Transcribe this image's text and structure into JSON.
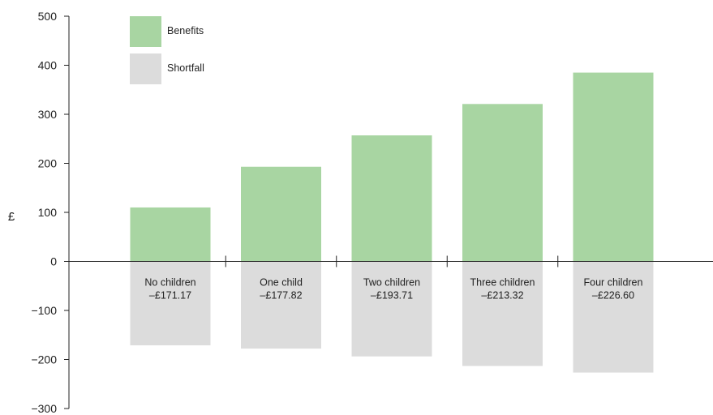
{
  "chart_data": {
    "type": "bar",
    "ylabel": "£",
    "ylim": [
      -300,
      500
    ],
    "yticks": [
      500,
      400,
      300,
      200,
      100,
      0,
      -100,
      -200,
      -300
    ],
    "categories": [
      "No children",
      "One child",
      "Two children",
      "Three children",
      "Four children"
    ],
    "series": [
      {
        "name": "Benefits",
        "values": [
          110,
          193,
          257,
          321,
          385
        ],
        "color": "#a8d5a2"
      },
      {
        "name": "Shortfall",
        "values": [
          -171.17,
          -177.82,
          -193.71,
          -213.32,
          -226.6
        ],
        "color": "#dcdcdc"
      }
    ],
    "shortfall_labels": [
      "–£171.17",
      "–£177.82",
      "–£193.71",
      "–£213.32",
      "–£226.60"
    ],
    "legend_position": "top-left"
  }
}
